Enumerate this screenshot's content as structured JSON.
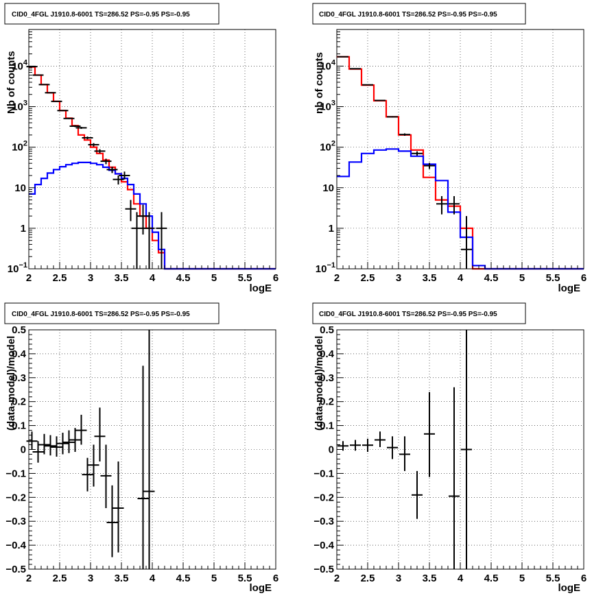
{
  "chart_data": [
    {
      "type": "line",
      "title": "CID0_4FGL J1910.8-6001 TS=286.52 PS=-0.95 PS=-0.95",
      "xlabel": "logE",
      "ylabel": "Nb of counts",
      "xlim": [
        2,
        6
      ],
      "ylim": [
        0.1,
        80000
      ],
      "yscale": "log",
      "grid": true,
      "xticks": [
        2,
        2.5,
        3,
        3.5,
        4,
        4.5,
        5,
        5.5,
        6
      ],
      "yticks": [
        {
          "v": 0.1,
          "base": "10",
          "exp": "−1"
        },
        {
          "v": 1,
          "base": "1",
          "exp": ""
        },
        {
          "v": 10,
          "base": "10",
          "exp": ""
        },
        {
          "v": 100,
          "base": "10",
          "exp": "2"
        },
        {
          "v": 1000,
          "base": "10",
          "exp": "3"
        },
        {
          "v": 10000,
          "base": "10",
          "exp": "4"
        }
      ],
      "series": [
        {
          "kind": "step",
          "color": "#ff0000",
          "edges": [
            2.0,
            2.1,
            2.2,
            2.3,
            2.4,
            2.5,
            2.6,
            2.7,
            2.8,
            2.9,
            3.0,
            3.1,
            3.2,
            3.3,
            3.4,
            3.5,
            3.6,
            3.7,
            3.8,
            3.9,
            4.0,
            4.1,
            4.2,
            4.3,
            4.4,
            4.5,
            4.6,
            4.7,
            4.8,
            4.9,
            5.0,
            5.1,
            5.2,
            5.3,
            5.4,
            5.5,
            5.6,
            5.7,
            5.8,
            5.9,
            6.0
          ],
          "values": [
            9500,
            6000,
            3500,
            2200,
            1350,
            800,
            520,
            340,
            200,
            150,
            100,
            70,
            48,
            32,
            22,
            14,
            9,
            4,
            2,
            1,
            0.5,
            0.25,
            0.1,
            0.1,
            0.1,
            0.1,
            0.1,
            0.1,
            0.1,
            0.1,
            0.1,
            0.1,
            0.1,
            0.1,
            0.1,
            0.1,
            0.1,
            0.1,
            0.1,
            0.1
          ]
        },
        {
          "kind": "step",
          "color": "#0000ff",
          "edges": [
            2.0,
            2.1,
            2.2,
            2.3,
            2.4,
            2.5,
            2.6,
            2.7,
            2.8,
            2.9,
            3.0,
            3.1,
            3.2,
            3.3,
            3.4,
            3.5,
            3.6,
            3.7,
            3.8,
            3.9,
            4.0,
            4.1,
            4.2,
            4.3,
            4.4,
            4.5,
            4.6,
            4.7,
            4.8,
            4.9,
            5.0,
            5.1,
            5.2,
            5.3,
            5.4,
            5.5,
            5.6,
            5.7,
            5.8,
            5.9,
            6.0
          ],
          "values": [
            7,
            12,
            17,
            23,
            28,
            33,
            37,
            40,
            42,
            42,
            40,
            37,
            32,
            27,
            22,
            17,
            12,
            7,
            4,
            2,
            0.8,
            0.3,
            0.1,
            0.1,
            0.1,
            0.1,
            0.1,
            0.1,
            0.1,
            0.1,
            0.1,
            0.1,
            0.1,
            0.1,
            0.1,
            0.1,
            0.1,
            0.1,
            0.1,
            0.1
          ]
        },
        {
          "kind": "errorbars",
          "color": "#000000",
          "points": [
            {
              "x": 2.05,
              "y": 9700,
              "lo": 9500,
              "hi": 9900
            },
            {
              "x": 2.15,
              "y": 6000,
              "lo": 5900,
              "hi": 6100
            },
            {
              "x": 2.25,
              "y": 3500,
              "lo": 3450,
              "hi": 3560
            },
            {
              "x": 2.35,
              "y": 2200,
              "lo": 2150,
              "hi": 2250
            },
            {
              "x": 2.45,
              "y": 1350,
              "lo": 1310,
              "hi": 1390
            },
            {
              "x": 2.55,
              "y": 800,
              "lo": 775,
              "hi": 825
            },
            {
              "x": 2.65,
              "y": 510,
              "lo": 490,
              "hi": 530
            },
            {
              "x": 2.75,
              "y": 330,
              "lo": 312,
              "hi": 348
            },
            {
              "x": 2.85,
              "y": 300,
              "lo": 283,
              "hi": 317
            },
            {
              "x": 2.95,
              "y": 170,
              "lo": 157,
              "hi": 183
            },
            {
              "x": 3.05,
              "y": 115,
              "lo": 104,
              "hi": 126
            },
            {
              "x": 3.15,
              "y": 80,
              "lo": 71,
              "hi": 89
            },
            {
              "x": 3.25,
              "y": 45,
              "lo": 38,
              "hi": 52
            },
            {
              "x": 3.35,
              "y": 28,
              "lo": 23,
              "hi": 33
            },
            {
              "x": 3.45,
              "y": 16,
              "lo": 12,
              "hi": 20
            },
            {
              "x": 3.55,
              "y": 20,
              "lo": 16,
              "hi": 25
            },
            {
              "x": 3.65,
              "y": 3,
              "lo": 1.5,
              "hi": 5
            },
            {
              "x": 3.75,
              "y": 1,
              "lo": 0.1,
              "hi": 2.5
            },
            {
              "x": 3.85,
              "y": 2,
              "lo": 0.7,
              "hi": 3.8
            },
            {
              "x": 3.95,
              "y": 1,
              "lo": 0.1,
              "hi": 2.5
            },
            {
              "x": 4.15,
              "y": 1,
              "lo": 0.1,
              "hi": 2.5
            }
          ]
        }
      ]
    },
    {
      "type": "line",
      "title": "CID0_4FGL J1910.8-6001 TS=286.52 PS=-0.95 PS=-0.95",
      "xlabel": "logE",
      "ylabel": "nb of counts",
      "xlim": [
        2,
        6
      ],
      "ylim": [
        0.1,
        80000
      ],
      "yscale": "log",
      "grid": true,
      "xticks": [
        2,
        2.5,
        3,
        3.5,
        4,
        4.5,
        5,
        5.5,
        6
      ],
      "yticks": [
        {
          "v": 0.1,
          "base": "10",
          "exp": "−1"
        },
        {
          "v": 1,
          "base": "1",
          "exp": ""
        },
        {
          "v": 10,
          "base": "10",
          "exp": ""
        },
        {
          "v": 100,
          "base": "10",
          "exp": "2"
        },
        {
          "v": 1000,
          "base": "10",
          "exp": "3"
        },
        {
          "v": 10000,
          "base": "10",
          "exp": "4"
        }
      ],
      "series": [
        {
          "kind": "step",
          "color": "#ff0000",
          "edges": [
            2.0,
            2.2,
            2.4,
            2.6,
            2.8,
            3.0,
            3.2,
            3.4,
            3.6,
            3.8,
            4.0,
            4.2,
            4.4,
            4.6,
            4.8,
            5.0,
            5.2,
            5.4,
            5.6,
            5.8,
            6.0
          ],
          "values": [
            17000,
            8500,
            3400,
            1400,
            560,
            200,
            85,
            18,
            5,
            3.5,
            1,
            0.1,
            0.1,
            0.1,
            0.1,
            0.1,
            0.1,
            0.1,
            0.1,
            0.1
          ]
        },
        {
          "kind": "step",
          "color": "#0000ff",
          "edges": [
            2.0,
            2.2,
            2.4,
            2.6,
            2.8,
            3.0,
            3.2,
            3.4,
            3.6,
            3.8,
            4.0,
            4.2,
            4.4,
            4.6,
            4.8,
            5.0,
            5.2,
            5.4,
            5.6,
            5.8,
            6.0
          ],
          "values": [
            19,
            43,
            70,
            85,
            90,
            80,
            60,
            38,
            15,
            2.5,
            0.6,
            0.12,
            0.1,
            0.1,
            0.1,
            0.1,
            0.1,
            0.1,
            0.1,
            0.1
          ]
        },
        {
          "kind": "errorbars",
          "color": "#000000",
          "points": [
            {
              "x": 2.1,
              "y": 17000,
              "lo": 16800,
              "hi": 17200
            },
            {
              "x": 2.3,
              "y": 8600,
              "lo": 8500,
              "hi": 8700
            },
            {
              "x": 2.5,
              "y": 3450,
              "lo": 3400,
              "hi": 3510
            },
            {
              "x": 2.7,
              "y": 1420,
              "lo": 1385,
              "hi": 1455
            },
            {
              "x": 2.9,
              "y": 560,
              "lo": 538,
              "hi": 582
            },
            {
              "x": 3.1,
              "y": 205,
              "lo": 191,
              "hi": 219
            },
            {
              "x": 3.3,
              "y": 70,
              "lo": 62,
              "hi": 79
            },
            {
              "x": 3.5,
              "y": 35,
              "lo": 29,
              "hi": 41
            },
            {
              "x": 3.7,
              "y": 4,
              "lo": 2.2,
              "hi": 6.2
            },
            {
              "x": 3.9,
              "y": 4,
              "lo": 2.2,
              "hi": 6.2
            },
            {
              "x": 4.1,
              "y": 0.3,
              "lo": 0.1,
              "hi": 2
            }
          ]
        }
      ]
    },
    {
      "type": "scatter",
      "title": "CID0_4FGL J1910.8-6001 TS=286.52 PS=-0.95 PS=-0.95",
      "xlabel": "logE",
      "ylabel": "(data-model)/model",
      "xlim": [
        2,
        6
      ],
      "ylim": [
        -0.5,
        0.5
      ],
      "yscale": "linear",
      "grid": true,
      "xticks": [
        2,
        2.5,
        3,
        3.5,
        4,
        4.5,
        5,
        5.5,
        6
      ],
      "yticks": [
        {
          "v": -0.5,
          "base": "−0.5",
          "exp": ""
        },
        {
          "v": -0.4,
          "base": "−0.4",
          "exp": ""
        },
        {
          "v": -0.3,
          "base": "−0.3",
          "exp": ""
        },
        {
          "v": -0.2,
          "base": "−0.2",
          "exp": ""
        },
        {
          "v": -0.1,
          "base": "−0.1",
          "exp": ""
        },
        {
          "v": 0,
          "base": "0",
          "exp": ""
        },
        {
          "v": 0.1,
          "base": "0.1",
          "exp": ""
        },
        {
          "v": 0.2,
          "base": "0.2",
          "exp": ""
        },
        {
          "v": 0.3,
          "base": "0.3",
          "exp": ""
        },
        {
          "v": 0.4,
          "base": "0.4",
          "exp": ""
        },
        {
          "v": 0.5,
          "base": "0.5",
          "exp": ""
        }
      ],
      "series": [
        {
          "kind": "errorbars",
          "color": "#000000",
          "points": [
            {
              "x": 2.05,
              "y": 0.035,
              "lo": 0.0,
              "hi": 0.075
            },
            {
              "x": 2.15,
              "y": -0.01,
              "lo": -0.055,
              "hi": 0.035
            },
            {
              "x": 2.25,
              "y": 0.02,
              "lo": -0.02,
              "hi": 0.065
            },
            {
              "x": 2.35,
              "y": 0.015,
              "lo": -0.025,
              "hi": 0.06
            },
            {
              "x": 2.45,
              "y": 0.01,
              "lo": -0.03,
              "hi": 0.055
            },
            {
              "x": 2.55,
              "y": 0.025,
              "lo": -0.02,
              "hi": 0.07
            },
            {
              "x": 2.65,
              "y": 0.03,
              "lo": -0.015,
              "hi": 0.08
            },
            {
              "x": 2.75,
              "y": 0.04,
              "lo": -0.01,
              "hi": 0.09
            },
            {
              "x": 2.85,
              "y": 0.08,
              "lo": 0.02,
              "hi": 0.145
            },
            {
              "x": 2.95,
              "y": -0.105,
              "lo": -0.175,
              "hi": -0.035
            },
            {
              "x": 3.05,
              "y": -0.065,
              "lo": -0.155,
              "hi": 0.02
            },
            {
              "x": 3.15,
              "y": 0.055,
              "lo": -0.05,
              "hi": 0.175
            },
            {
              "x": 3.25,
              "y": -0.11,
              "lo": -0.245,
              "hi": 0.02
            },
            {
              "x": 3.35,
              "y": -0.305,
              "lo": -0.45,
              "hi": -0.15
            },
            {
              "x": 3.45,
              "y": -0.245,
              "lo": -0.43,
              "hi": -0.05
            },
            {
              "x": 3.85,
              "y": -0.205,
              "lo": -0.5,
              "hi": 0.35
            },
            {
              "x": 3.95,
              "y": -0.175,
              "lo": -0.5,
              "hi": 0.5
            }
          ]
        }
      ]
    },
    {
      "type": "scatter",
      "title": "CID0_4FGL J1910.8-6001 TS=286.52 PS=-0.95 PS=-0.95",
      "xlabel": "logE",
      "ylabel": "(data-model)/model",
      "xlim": [
        2,
        6
      ],
      "ylim": [
        -0.5,
        0.5
      ],
      "yscale": "linear",
      "grid": true,
      "xticks": [
        2,
        2.5,
        3,
        3.5,
        4,
        4.5,
        5,
        5.5,
        6
      ],
      "yticks": [
        {
          "v": -0.5,
          "base": "−0.5",
          "exp": ""
        },
        {
          "v": -0.4,
          "base": "−0.4",
          "exp": ""
        },
        {
          "v": -0.3,
          "base": "−0.3",
          "exp": ""
        },
        {
          "v": -0.2,
          "base": "−0.2",
          "exp": ""
        },
        {
          "v": -0.1,
          "base": "−0.1",
          "exp": ""
        },
        {
          "v": 0,
          "base": "0",
          "exp": ""
        },
        {
          "v": 0.1,
          "base": "0.1",
          "exp": ""
        },
        {
          "v": 0.2,
          "base": "0.2",
          "exp": ""
        },
        {
          "v": 0.3,
          "base": "0.3",
          "exp": ""
        },
        {
          "v": 0.4,
          "base": "0.4",
          "exp": ""
        },
        {
          "v": 0.5,
          "base": "0.5",
          "exp": ""
        }
      ],
      "series": [
        {
          "kind": "errorbars",
          "color": "#000000",
          "points": [
            {
              "x": 2.1,
              "y": 0.015,
              "lo": -0.005,
              "hi": 0.035
            },
            {
              "x": 2.3,
              "y": 0.018,
              "lo": -0.005,
              "hi": 0.04
            },
            {
              "x": 2.5,
              "y": 0.018,
              "lo": -0.01,
              "hi": 0.045
            },
            {
              "x": 2.7,
              "y": 0.04,
              "lo": 0.01,
              "hi": 0.075
            },
            {
              "x": 2.9,
              "y": 0.008,
              "lo": -0.04,
              "hi": 0.055
            },
            {
              "x": 3.1,
              "y": -0.02,
              "lo": -0.09,
              "hi": 0.055
            },
            {
              "x": 3.3,
              "y": -0.19,
              "lo": -0.29,
              "hi": -0.09
            },
            {
              "x": 3.5,
              "y": 0.065,
              "lo": -0.115,
              "hi": 0.24
            },
            {
              "x": 3.9,
              "y": -0.195,
              "lo": -0.5,
              "hi": 0.26
            },
            {
              "x": 4.1,
              "y": 0.0,
              "lo": -0.5,
              "hi": 0.5
            }
          ]
        }
      ]
    }
  ]
}
